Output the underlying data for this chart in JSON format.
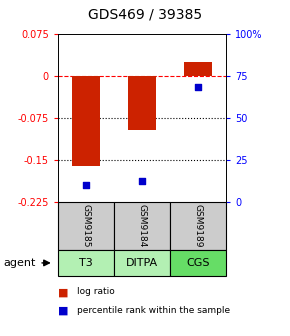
{
  "title": "GDS469 / 39385",
  "samples": [
    "GSM9185",
    "GSM9184",
    "GSM9189"
  ],
  "agents": [
    "T3",
    "DITPA",
    "CGS"
  ],
  "agent_colors": [
    "#b3f0b3",
    "#b3f0b3",
    "#66dd66"
  ],
  "log_ratios": [
    -0.162,
    -0.098,
    0.025
  ],
  "percentile_ranks": [
    10.0,
    12.5,
    68.0
  ],
  "bar_color": "#cc2200",
  "dot_color": "#0000cc",
  "ylim_left": [
    -0.225,
    0.075
  ],
  "ylim_right": [
    0,
    100
  ],
  "yticks_left": [
    0.075,
    0,
    -0.075,
    -0.15,
    -0.225
  ],
  "ytick_labels_left": [
    "0.075",
    "0",
    "-0.075",
    "-0.15",
    "-0.225"
  ],
  "yticks_right": [
    100,
    75,
    50,
    25,
    0
  ],
  "ytick_labels_right": [
    "100%",
    "75",
    "50",
    "25",
    "0"
  ],
  "hline_dashed": 0,
  "hlines_dotted": [
    -0.075,
    -0.15
  ],
  "sample_box_color": "#cccccc",
  "legend_log": "log ratio",
  "legend_pct": "percentile rank within the sample"
}
